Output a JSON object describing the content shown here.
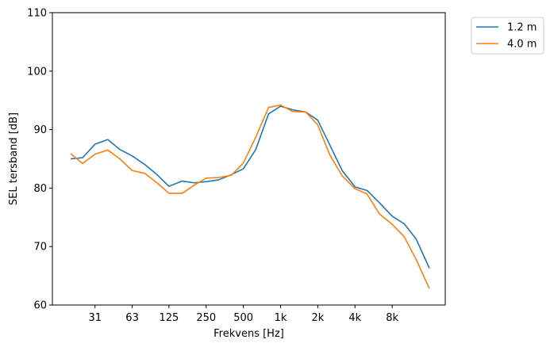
{
  "chart_data": {
    "type": "line",
    "xlabel": "Frekvens [Hz]",
    "ylabel": "SEL tersband [dB]",
    "ylim": [
      60,
      110
    ],
    "y_ticks": [
      60,
      70,
      80,
      90,
      100,
      110
    ],
    "x_scale": "log",
    "x_tick_labels": [
      "31",
      "63",
      "125",
      "250",
      "500",
      "1k",
      "2k",
      "4k",
      "8k"
    ],
    "x_tick_values": [
      31.5,
      63,
      125,
      250,
      500,
      1000,
      2000,
      4000,
      8000
    ],
    "x": [
      20,
      25,
      31.5,
      40,
      50,
      63,
      80,
      100,
      125,
      160,
      200,
      250,
      315,
      400,
      500,
      630,
      800,
      1000,
      1250,
      1600,
      2000,
      2500,
      3150,
      4000,
      5000,
      6300,
      8000,
      10000,
      12500,
      16000
    ],
    "legend_position": "outside-top-right",
    "grid": false,
    "series": [
      {
        "name": "1.2 m",
        "color": "#1f77b4",
        "values": [
          85.0,
          85.2,
          87.5,
          88.3,
          86.6,
          85.5,
          84.0,
          82.3,
          80.3,
          81.2,
          80.9,
          81.1,
          81.4,
          82.3,
          83.3,
          86.6,
          92.7,
          94.0,
          93.4,
          93.0,
          91.6,
          87.4,
          83.0,
          80.2,
          79.6,
          77.5,
          75.2,
          73.9,
          71.3,
          66.3
        ]
      },
      {
        "name": "4.0 m",
        "color": "#ff7f0e",
        "values": [
          85.9,
          84.2,
          85.8,
          86.5,
          85.0,
          83.0,
          82.5,
          80.9,
          79.1,
          79.1,
          80.5,
          81.7,
          81.8,
          82.2,
          84.3,
          88.7,
          93.8,
          94.2,
          93.1,
          93.0,
          90.8,
          85.7,
          82.1,
          79.9,
          79.0,
          75.6,
          73.8,
          71.7,
          67.8,
          62.8
        ]
      }
    ]
  }
}
